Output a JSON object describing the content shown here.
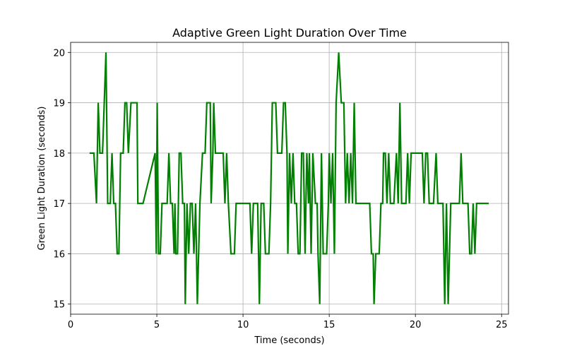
{
  "chart_data": {
    "type": "line",
    "title": "Adaptive Green Light Duration Over Time",
    "xlabel": "Time (seconds)",
    "ylabel": "Green Light Duration (seconds)",
    "xlim": [
      0,
      25.4
    ],
    "ylim": [
      14.8,
      20.2
    ],
    "xticks": [
      0,
      5,
      10,
      15,
      20,
      25
    ],
    "yticks": [
      15,
      16,
      17,
      18,
      19,
      20
    ],
    "grid": true,
    "series": [
      {
        "color": "#008000",
        "points": [
          [
            1.1,
            18
          ],
          [
            1.35,
            18
          ],
          [
            1.5,
            17
          ],
          [
            1.6,
            19
          ],
          [
            1.7,
            18
          ],
          [
            1.85,
            18
          ],
          [
            2.05,
            20
          ],
          [
            2.15,
            17
          ],
          [
            2.3,
            17
          ],
          [
            2.4,
            18
          ],
          [
            2.5,
            17
          ],
          [
            2.6,
            17
          ],
          [
            2.7,
            16
          ],
          [
            2.8,
            16
          ],
          [
            2.9,
            18
          ],
          [
            3.05,
            18
          ],
          [
            3.15,
            19
          ],
          [
            3.25,
            19
          ],
          [
            3.35,
            18
          ],
          [
            3.5,
            19
          ],
          [
            3.85,
            19
          ],
          [
            3.9,
            17
          ],
          [
            4.2,
            17
          ],
          [
            4.9,
            18
          ],
          [
            4.97,
            16
          ],
          [
            5.02,
            19
          ],
          [
            5.1,
            16
          ],
          [
            5.2,
            16
          ],
          [
            5.3,
            17
          ],
          [
            5.6,
            17
          ],
          [
            5.7,
            18
          ],
          [
            5.8,
            17
          ],
          [
            5.9,
            17
          ],
          [
            6.0,
            16
          ],
          [
            6.05,
            17
          ],
          [
            6.1,
            16
          ],
          [
            6.2,
            16
          ],
          [
            6.3,
            18
          ],
          [
            6.4,
            18
          ],
          [
            6.5,
            17
          ],
          [
            6.6,
            17
          ],
          [
            6.65,
            15
          ],
          [
            6.75,
            17
          ],
          [
            6.85,
            16
          ],
          [
            6.95,
            17
          ],
          [
            7.05,
            17
          ],
          [
            7.15,
            16
          ],
          [
            7.25,
            17
          ],
          [
            7.35,
            15
          ],
          [
            7.5,
            17
          ],
          [
            7.65,
            18
          ],
          [
            7.8,
            18
          ],
          [
            7.9,
            19
          ],
          [
            8.1,
            19
          ],
          [
            8.15,
            17
          ],
          [
            8.25,
            18
          ],
          [
            8.3,
            19
          ],
          [
            8.4,
            18
          ],
          [
            8.5,
            18
          ],
          [
            8.85,
            18
          ],
          [
            8.95,
            17
          ],
          [
            9.05,
            18
          ],
          [
            9.15,
            17
          ],
          [
            9.3,
            16
          ],
          [
            9.5,
            16
          ],
          [
            9.6,
            17
          ],
          [
            10.4,
            17
          ],
          [
            10.5,
            16
          ],
          [
            10.6,
            17
          ],
          [
            10.85,
            17
          ],
          [
            10.95,
            15
          ],
          [
            11.05,
            17
          ],
          [
            11.2,
            17
          ],
          [
            11.3,
            16
          ],
          [
            11.5,
            16
          ],
          [
            11.6,
            17
          ],
          [
            11.7,
            19
          ],
          [
            11.9,
            19
          ],
          [
            12.0,
            18
          ],
          [
            12.25,
            18
          ],
          [
            12.35,
            19
          ],
          [
            12.45,
            19
          ],
          [
            12.55,
            18
          ],
          [
            12.6,
            16
          ],
          [
            12.7,
            18
          ],
          [
            12.8,
            17
          ],
          [
            12.9,
            18
          ],
          [
            13.0,
            17
          ],
          [
            13.1,
            17
          ],
          [
            13.2,
            16
          ],
          [
            13.3,
            16
          ],
          [
            13.4,
            18
          ],
          [
            13.5,
            18
          ],
          [
            13.6,
            16
          ],
          [
            13.7,
            18
          ],
          [
            13.8,
            17
          ],
          [
            13.85,
            18
          ],
          [
            13.95,
            16
          ],
          [
            14.05,
            18
          ],
          [
            14.2,
            17
          ],
          [
            14.3,
            17
          ],
          [
            14.35,
            16
          ],
          [
            14.45,
            15
          ],
          [
            14.55,
            18
          ],
          [
            14.65,
            16
          ],
          [
            14.85,
            16
          ],
          [
            14.95,
            17
          ],
          [
            15.0,
            18
          ],
          [
            15.1,
            17
          ],
          [
            15.2,
            18
          ],
          [
            15.3,
            16
          ],
          [
            15.4,
            19
          ],
          [
            15.55,
            20
          ],
          [
            15.7,
            19
          ],
          [
            15.85,
            19
          ],
          [
            15.95,
            17
          ],
          [
            16.05,
            18
          ],
          [
            16.15,
            17
          ],
          [
            16.25,
            18
          ],
          [
            16.35,
            17
          ],
          [
            16.45,
            19
          ],
          [
            16.55,
            17
          ],
          [
            16.65,
            17
          ],
          [
            16.95,
            17
          ],
          [
            17.05,
            17
          ],
          [
            17.35,
            17
          ],
          [
            17.45,
            16
          ],
          [
            17.55,
            16
          ],
          [
            17.6,
            15
          ],
          [
            17.7,
            16
          ],
          [
            17.9,
            16
          ],
          [
            18.0,
            17
          ],
          [
            18.1,
            17
          ],
          [
            18.15,
            18
          ],
          [
            18.25,
            18
          ],
          [
            18.35,
            17
          ],
          [
            18.45,
            18
          ],
          [
            18.55,
            17
          ],
          [
            18.65,
            17
          ],
          [
            18.75,
            17
          ],
          [
            18.9,
            18
          ],
          [
            19.0,
            17
          ],
          [
            19.1,
            19
          ],
          [
            19.2,
            17
          ],
          [
            19.45,
            17
          ],
          [
            19.55,
            18
          ],
          [
            19.65,
            17
          ],
          [
            19.75,
            18
          ],
          [
            19.85,
            18
          ],
          [
            20.4,
            18
          ],
          [
            20.5,
            17
          ],
          [
            20.6,
            18
          ],
          [
            20.7,
            18
          ],
          [
            20.8,
            17
          ],
          [
            21.05,
            17
          ],
          [
            21.2,
            18
          ],
          [
            21.3,
            17
          ],
          [
            21.6,
            17
          ],
          [
            21.7,
            15
          ],
          [
            21.8,
            17
          ],
          [
            21.9,
            15
          ],
          [
            22.05,
            17
          ],
          [
            22.55,
            17
          ],
          [
            22.65,
            18
          ],
          [
            22.75,
            17
          ],
          [
            22.9,
            17
          ],
          [
            23.05,
            17
          ],
          [
            23.15,
            16
          ],
          [
            23.25,
            16
          ],
          [
            23.35,
            17
          ],
          [
            23.45,
            16
          ],
          [
            23.55,
            17
          ],
          [
            24.25,
            17
          ]
        ]
      }
    ]
  }
}
